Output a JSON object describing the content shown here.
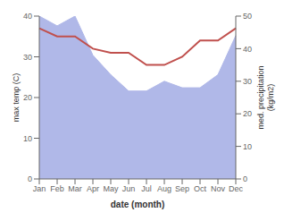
{
  "chart_data": {
    "type": "line",
    "categories": [
      "Jan",
      "Feb",
      "Mar",
      "Apr",
      "May",
      "Jun",
      "Jul",
      "Aug",
      "Sep",
      "Oct",
      "Nov",
      "Dec"
    ],
    "series": [
      {
        "type": "area",
        "axis": "y2",
        "color": "#b0b8e8",
        "values": [
          50,
          47,
          50,
          38,
          32,
          27,
          27,
          30,
          28,
          28,
          32,
          44
        ]
      },
      {
        "type": "line",
        "color": "#c0504d",
        "values": [
          37,
          35,
          35,
          32,
          31,
          31,
          28,
          28,
          30,
          34,
          34,
          37
        ]
      }
    ],
    "xlabel": "date (month)",
    "ylabel": "max temp (C)",
    "y2label": "med. precipitation\n(kg/m2)",
    "ylim": [
      0,
      40
    ],
    "yticks": [
      0,
      10,
      20,
      30,
      40
    ],
    "y2lim": [
      0,
      50
    ],
    "y2ticks": [
      0,
      10,
      20,
      30,
      40,
      50
    ]
  }
}
